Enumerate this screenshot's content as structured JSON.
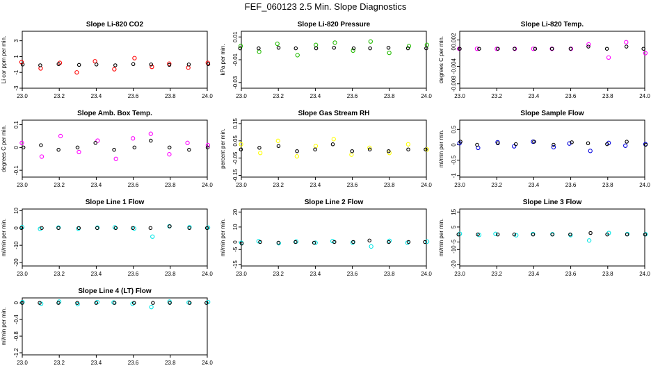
{
  "title": "FEF_060123  2.5 Min. Slope Diagnostics",
  "xaxis": {
    "min": 23.0,
    "max": 24.0,
    "ticks": [
      "23.0",
      "23.2",
      "23.4",
      "23.6",
      "23.8",
      "24.0"
    ]
  },
  "chart_data": [
    {
      "type": "scatter",
      "title": "Slope Li-820 CO2",
      "ylabel": "Li cor ppm per min.",
      "ylim": [
        -3,
        4.2
      ],
      "yticks": [
        -3,
        -1,
        1,
        3
      ],
      "color": "#ff0000",
      "x": [
        23.0,
        23.1,
        23.2,
        23.3,
        23.4,
        23.5,
        23.6,
        23.7,
        23.8,
        23.9,
        24.0
      ],
      "series": [
        {
          "name": "",
          "color": "#ff0000",
          "values": [
            0.3,
            -0.5,
            0.2,
            -1.0,
            0.4,
            -0.6,
            0.8,
            -0.3,
            0.1,
            -0.4,
            0.2
          ]
        },
        {
          "name": "",
          "color": "#000000",
          "values": [
            0.0,
            -0.1,
            0.05,
            -0.05,
            0.0,
            -0.1,
            0.05,
            0.0,
            -0.05,
            0.0,
            0.05
          ]
        }
      ]
    },
    {
      "type": "scatter",
      "title": "Slope Li-820 Pressure",
      "ylabel": "kPa per min.",
      "ylim": [
        -0.035,
        0.015
      ],
      "yticks": [
        -0.03,
        -0.01,
        0.01
      ],
      "color": "#22bb00",
      "x": [
        23.0,
        23.1,
        23.2,
        23.3,
        23.4,
        23.5,
        23.6,
        23.7,
        23.8,
        23.9,
        24.0
      ],
      "series": [
        {
          "name": "",
          "color": "#22bb00",
          "values": [
            0.002,
            -0.003,
            0.004,
            -0.006,
            0.003,
            0.005,
            -0.002,
            0.006,
            -0.004,
            0.002,
            0.003
          ]
        },
        {
          "name": "",
          "color": "#000000",
          "values": [
            0.0,
            0.0,
            0.0005,
            0.0,
            0.0,
            0.0005,
            0.0,
            0.0,
            0.0005,
            0.0,
            0.0
          ]
        }
      ]
    },
    {
      "type": "scatter",
      "title": "Slope Li-820 Temp.",
      "ylabel": "degrees C per min.",
      "ylim": [
        -0.009,
        0.004
      ],
      "yticks": [
        -0.008,
        -0.004,
        0.0,
        0.002
      ],
      "color": "#ff00ff",
      "x": [
        23.0,
        23.1,
        23.2,
        23.3,
        23.4,
        23.5,
        23.6,
        23.7,
        23.8,
        23.9,
        24.0
      ],
      "series": [
        {
          "name": "",
          "color": "#ff00ff",
          "values": [
            0,
            0,
            0,
            0,
            0,
            0,
            0,
            0.001,
            -0.002,
            0.0015,
            -0.001
          ]
        },
        {
          "name": "",
          "color": "#000000",
          "values": [
            0,
            0,
            0,
            0,
            0,
            0,
            0,
            0.0005,
            0.0,
            0.0005,
            0.0
          ]
        }
      ]
    },
    {
      "type": "scatter",
      "title": "Slope Amb. Box Temp.",
      "ylabel": "degrees C per min.",
      "ylim": [
        -0.13,
        0.12
      ],
      "yticks": [
        -0.1,
        0.0,
        0.1
      ],
      "color": "#ff00ff",
      "x": [
        23.0,
        23.1,
        23.2,
        23.3,
        23.4,
        23.5,
        23.6,
        23.7,
        23.8,
        23.9,
        24.0
      ],
      "series": [
        {
          "name": "",
          "color": "#ff00ff",
          "values": [
            0.02,
            -0.04,
            0.05,
            -0.02,
            0.03,
            -0.05,
            0.04,
            0.06,
            -0.03,
            0.02,
            0.01
          ]
        },
        {
          "name": "",
          "color": "#000000",
          "values": [
            0.0,
            0.01,
            -0.01,
            0.0,
            0.02,
            -0.01,
            0.0,
            0.03,
            0.0,
            -0.01,
            0.0
          ]
        }
      ]
    },
    {
      "type": "scatter",
      "title": "Slope Gas Stream RH",
      "ylabel": "percent per min.",
      "ylim": [
        -0.16,
        0.17
      ],
      "yticks": [
        -0.15,
        -0.05,
        0.05,
        0.15
      ],
      "color": "#ffff00",
      "x": [
        23.0,
        23.1,
        23.2,
        23.3,
        23.4,
        23.5,
        23.6,
        23.7,
        23.8,
        23.9,
        24.0
      ],
      "series": [
        {
          "name": "",
          "color": "#ffff00",
          "values": [
            0.03,
            -0.02,
            0.05,
            -0.04,
            0.02,
            0.06,
            -0.03,
            0.01,
            -0.02,
            0.03,
            0.0
          ]
        },
        {
          "name": "",
          "color": "#000000",
          "values": [
            0.0,
            0.01,
            0.02,
            -0.01,
            0.0,
            0.03,
            -0.01,
            0.0,
            -0.01,
            0.0,
            0.0
          ]
        }
      ]
    },
    {
      "type": "scatter",
      "title": "Slope Sample Flow",
      "ylabel": "ml/min per min.",
      "ylim": [
        -1.05,
        0.8
      ],
      "yticks": [
        -1.0,
        -0.5,
        0.0,
        0.5
      ],
      "color": "#0000dd",
      "x": [
        23.0,
        23.1,
        23.2,
        23.3,
        23.4,
        23.5,
        23.6,
        23.7,
        23.8,
        23.9,
        24.0
      ],
      "series": [
        {
          "name": "",
          "color": "#0000dd",
          "values": [
            0.05,
            -0.1,
            0.08,
            -0.05,
            0.1,
            -0.08,
            0.04,
            -0.2,
            0.06,
            -0.03,
            0.02
          ]
        },
        {
          "name": "",
          "color": "#000000",
          "values": [
            0.1,
            0.0,
            0.05,
            0.02,
            0.1,
            0.0,
            0.08,
            0.05,
            0.02,
            0.1,
            0.0
          ]
        }
      ]
    },
    {
      "type": "scatter",
      "title": "Slope Line 1 Flow",
      "ylabel": "ml/min per min.",
      "ylim": [
        -22,
        11
      ],
      "yticks": [
        -20,
        -10,
        0,
        10
      ],
      "color": "#00e5e5",
      "x": [
        23.0,
        23.1,
        23.2,
        23.3,
        23.4,
        23.5,
        23.6,
        23.7,
        23.8,
        23.9,
        24.0
      ],
      "series": [
        {
          "name": "",
          "color": "#00e5e5",
          "values": [
            0.5,
            -0.5,
            0.3,
            -0.4,
            0.2,
            0.4,
            -0.3,
            -5.0,
            1.0,
            0.5,
            0.3
          ]
        },
        {
          "name": "",
          "color": "#000000",
          "values": [
            0,
            0,
            0,
            0,
            0,
            0,
            0,
            0,
            1,
            0,
            0
          ]
        }
      ]
    },
    {
      "type": "scatter",
      "title": "Slope Line 2 Flow",
      "ylabel": "ml/min per min.",
      "ylim": [
        -16,
        22
      ],
      "yticks": [
        -15,
        -5,
        0,
        10,
        20
      ],
      "color": "#00e5e5",
      "x": [
        23.0,
        23.1,
        23.2,
        23.3,
        23.4,
        23.5,
        23.6,
        23.7,
        23.8,
        23.9,
        24.0
      ],
      "series": [
        {
          "name": "",
          "color": "#00e5e5",
          "values": [
            -0.5,
            0.5,
            -0.8,
            0.3,
            -0.5,
            0.6,
            -0.4,
            -3.0,
            0.8,
            -0.5,
            0.3
          ]
        },
        {
          "name": "",
          "color": "#000000",
          "values": [
            -1,
            0,
            -0.5,
            0,
            -0.5,
            0,
            0,
            1,
            0,
            0,
            0
          ]
        }
      ]
    },
    {
      "type": "scatter",
      "title": "Slope Line 3 Flow",
      "ylabel": "ml/min per min.",
      "ylim": [
        -21,
        17
      ],
      "yticks": [
        -20,
        -10,
        -5,
        5,
        15
      ],
      "color": "#00e5e5",
      "x": [
        23.0,
        23.1,
        23.2,
        23.3,
        23.4,
        23.5,
        23.6,
        23.7,
        23.8,
        23.9,
        24.0
      ],
      "series": [
        {
          "name": "",
          "color": "#00e5e5",
          "values": [
            0.5,
            -0.3,
            0.4,
            -0.5,
            0.3,
            0.2,
            -0.4,
            -4.0,
            1.0,
            0.3,
            0.2
          ]
        },
        {
          "name": "",
          "color": "#000000",
          "values": [
            0,
            0,
            0,
            0,
            0,
            0,
            0,
            1,
            0,
            0,
            0
          ]
        }
      ]
    },
    {
      "type": "scatter",
      "title": "Slope Line 4 (LT) Flow",
      "ylabel": "ml/min per min.",
      "ylim": [
        -1.25,
        0.12
      ],
      "yticks": [
        -1.2,
        -0.8,
        -0.4,
        0.0
      ],
      "color": "#00e5e5",
      "x": [
        23.0,
        23.1,
        23.2,
        23.3,
        23.4,
        23.5,
        23.6,
        23.7,
        23.8,
        23.9,
        24.0
      ],
      "series": [
        {
          "name": "",
          "color": "#00e5e5",
          "values": [
            0.02,
            -0.02,
            0.03,
            -0.03,
            0.02,
            0.01,
            -0.02,
            -0.1,
            0.03,
            0.01,
            0.02
          ]
        },
        {
          "name": "",
          "color": "#000000",
          "values": [
            0,
            0,
            0,
            0,
            0,
            0,
            0,
            0,
            0,
            0,
            0
          ]
        }
      ]
    }
  ]
}
